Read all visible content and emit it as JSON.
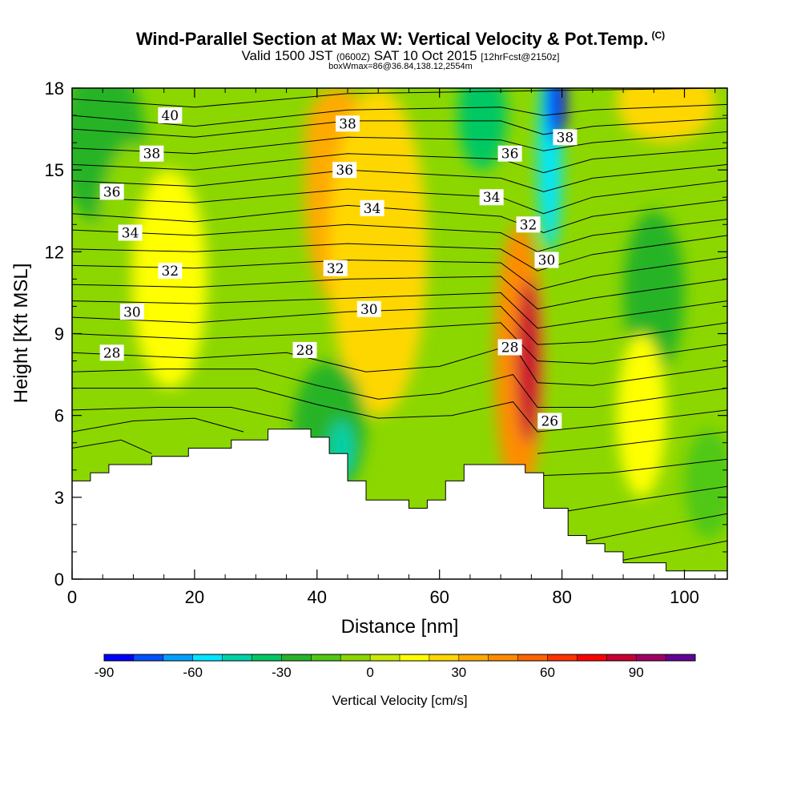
{
  "title": "Wind-Parallel Section at Max W: Vertical Velocity & Pot.Temp.",
  "copyright": "(C)",
  "subtitle": {
    "a": "Valid 1500 JST",
    "b": "(0600Z)",
    "c": "SAT 10 Oct 2015",
    "d": "[12hrFcst@2150z]"
  },
  "subtitle2": "boxWmax=86@36.84,138.12,2554m",
  "chart_data": {
    "type": "heatmap",
    "title": "Wind-Parallel Section at Max W: Vertical Velocity & Pot.Temp.",
    "xlabel": "Distance [nm]",
    "ylabel": "Height [Kft MSL]",
    "xlim": [
      0,
      107
    ],
    "ylim": [
      0,
      18
    ],
    "x_ticks": [
      0,
      20,
      40,
      60,
      80,
      100
    ],
    "y_ticks": [
      0,
      3,
      6,
      9,
      12,
      15,
      18
    ],
    "colorbar": {
      "label": "Vertical Velocity [cm/s]",
      "range": [
        -90,
        110
      ],
      "step": 10,
      "tick_labels": [
        "-90",
        "-60",
        "-30",
        "0",
        "30",
        "60",
        "90"
      ],
      "colors": [
        "#0000ff",
        "#0050ff",
        "#00a0ff",
        "#00e6ff",
        "#00d2aa",
        "#00c864",
        "#28b428",
        "#50c814",
        "#8cd700",
        "#c8eb00",
        "#ffff00",
        "#ffd700",
        "#ffaa00",
        "#ff8c00",
        "#ff6400",
        "#ff3200",
        "#ff0000",
        "#c80032",
        "#a00064",
        "#640096"
      ]
    },
    "max_w": {
      "value": 86,
      "lat": 36.84,
      "lon": 138.12,
      "height_m": 2554
    },
    "terrain": [
      [
        0,
        3.6
      ],
      [
        3,
        3.6
      ],
      [
        3,
        3.9
      ],
      [
        6,
        3.9
      ],
      [
        6,
        4.2
      ],
      [
        13,
        4.2
      ],
      [
        13,
        4.5
      ],
      [
        19,
        4.5
      ],
      [
        19,
        4.8
      ],
      [
        26,
        4.8
      ],
      [
        26,
        5.1
      ],
      [
        32,
        5.1
      ],
      [
        32,
        5.5
      ],
      [
        39,
        5.5
      ],
      [
        39,
        5.2
      ],
      [
        42,
        5.2
      ],
      [
        42,
        4.6
      ],
      [
        45,
        4.6
      ],
      [
        45,
        3.6
      ],
      [
        48,
        3.6
      ],
      [
        48,
        2.9
      ],
      [
        55,
        2.9
      ],
      [
        55,
        2.6
      ],
      [
        58,
        2.6
      ],
      [
        58,
        2.9
      ],
      [
        61,
        2.9
      ],
      [
        61,
        3.6
      ],
      [
        64,
        3.6
      ],
      [
        64,
        4.2
      ],
      [
        74,
        4.2
      ],
      [
        74,
        3.9
      ],
      [
        77,
        3.9
      ],
      [
        77,
        2.6
      ],
      [
        81,
        2.6
      ],
      [
        81,
        1.6
      ],
      [
        84,
        1.6
      ],
      [
        84,
        1.3
      ],
      [
        87,
        1.3
      ],
      [
        87,
        1.0
      ],
      [
        90,
        1.0
      ],
      [
        90,
        0.6
      ],
      [
        97,
        0.6
      ],
      [
        97,
        0.3
      ],
      [
        107,
        0.3
      ]
    ],
    "w_cells": [
      {
        "x": 5,
        "y": 16,
        "rx": 7,
        "ry": 3,
        "w": -25
      },
      {
        "x": 10,
        "y": 12,
        "rx": 6,
        "ry": 4,
        "w": -10
      },
      {
        "x": 16,
        "y": 11,
        "rx": 6,
        "ry": 4,
        "w": 10
      },
      {
        "x": 44,
        "y": 14,
        "rx": 6,
        "ry": 4,
        "w": 35
      },
      {
        "x": 43,
        "y": 16,
        "rx": 5,
        "ry": 2,
        "w": 35
      },
      {
        "x": 50,
        "y": 12,
        "rx": 8,
        "ry": 6,
        "w": 20
      },
      {
        "x": 42,
        "y": 5.5,
        "rx": 6,
        "ry": 2.5,
        "w": -30
      },
      {
        "x": 44,
        "y": 4.8,
        "rx": 2,
        "ry": 1,
        "w": -50
      },
      {
        "x": 67,
        "y": 17,
        "rx": 4,
        "ry": 2,
        "w": -40
      },
      {
        "x": 73,
        "y": 8,
        "rx": 4,
        "ry": 5,
        "w": 40
      },
      {
        "x": 74.5,
        "y": 8,
        "rx": 2,
        "ry": 3,
        "w": 86
      },
      {
        "x": 78,
        "y": 15.5,
        "rx": 2,
        "ry": 3.5,
        "w": -60
      },
      {
        "x": 79,
        "y": 17.5,
        "rx": 1.5,
        "ry": 1.5,
        "w": -90
      },
      {
        "x": 95,
        "y": 10.5,
        "rx": 5,
        "ry": 3,
        "w": -25
      },
      {
        "x": 97,
        "y": 17.5,
        "rx": 8,
        "ry": 1.5,
        "w": 20
      },
      {
        "x": 93,
        "y": 6,
        "rx": 4,
        "ry": 3,
        "w": 10
      },
      {
        "x": 104,
        "y": 3.5,
        "rx": 4,
        "ry": 2,
        "w": -15
      }
    ],
    "theta_labels": [
      {
        "text": "40",
        "x": 16,
        "y": 17.0
      },
      {
        "text": "38",
        "x": 13,
        "y": 15.6
      },
      {
        "text": "36",
        "x": 6.5,
        "y": 14.2
      },
      {
        "text": "34",
        "x": 9.5,
        "y": 12.7
      },
      {
        "text": "32",
        "x": 16,
        "y": 11.3
      },
      {
        "text": "30",
        "x": 9.8,
        "y": 9.8
      },
      {
        "text": "28",
        "x": 6.5,
        "y": 8.3
      },
      {
        "text": "38",
        "x": 45,
        "y": 16.7
      },
      {
        "text": "36",
        "x": 44.5,
        "y": 15.0
      },
      {
        "text": "34",
        "x": 49,
        "y": 13.6
      },
      {
        "text": "32",
        "x": 43,
        "y": 11.4
      },
      {
        "text": "30",
        "x": 48.5,
        "y": 9.9
      },
      {
        "text": "28",
        "x": 38,
        "y": 8.4
      },
      {
        "text": "36",
        "x": 71.5,
        "y": 15.6
      },
      {
        "text": "34",
        "x": 68.5,
        "y": 14.0
      },
      {
        "text": "32",
        "x": 74.5,
        "y": 13.0
      },
      {
        "text": "30",
        "x": 77.5,
        "y": 11.7
      },
      {
        "text": "28",
        "x": 71.5,
        "y": 8.5
      },
      {
        "text": "26",
        "x": 78,
        "y": 5.8
      },
      {
        "text": "38",
        "x": 80.5,
        "y": 16.2
      }
    ],
    "theta_contours": [
      [
        [
          0,
          17.6
        ],
        [
          20,
          17.3
        ],
        [
          45,
          17.8
        ],
        [
          75,
          17.9
        ],
        [
          107,
          18.0
        ]
      ],
      [
        [
          0,
          17.0
        ],
        [
          20,
          16.6
        ],
        [
          45,
          17.2
        ],
        [
          70,
          17.3
        ],
        [
          77,
          17.0
        ],
        [
          85,
          17.2
        ],
        [
          107,
          17.4
        ]
      ],
      [
        [
          0,
          16.5
        ],
        [
          20,
          16.2
        ],
        [
          45,
          16.8
        ],
        [
          70,
          16.8
        ],
        [
          77,
          16.3
        ],
        [
          85,
          16.6
        ],
        [
          107,
          16.9
        ]
      ],
      [
        [
          0,
          15.8
        ],
        [
          20,
          15.6
        ],
        [
          45,
          16.2
        ],
        [
          70,
          16.1
        ],
        [
          77,
          15.7
        ],
        [
          85,
          16.0
        ],
        [
          107,
          16.4
        ]
      ],
      [
        [
          0,
          15.2
        ],
        [
          20,
          15.0
        ],
        [
          45,
          15.6
        ],
        [
          70,
          15.4
        ],
        [
          77,
          14.9
        ],
        [
          85,
          15.4
        ],
        [
          107,
          15.8
        ]
      ],
      [
        [
          0,
          14.6
        ],
        [
          20,
          14.4
        ],
        [
          45,
          15.0
        ],
        [
          70,
          14.7
        ],
        [
          77,
          14.2
        ],
        [
          85,
          14.7
        ],
        [
          107,
          15.2
        ]
      ],
      [
        [
          0,
          14.0
        ],
        [
          20,
          13.8
        ],
        [
          45,
          14.3
        ],
        [
          70,
          14.0
        ],
        [
          77,
          13.4
        ],
        [
          85,
          14.0
        ],
        [
          107,
          14.6
        ]
      ],
      [
        [
          0,
          13.4
        ],
        [
          20,
          13.1
        ],
        [
          45,
          13.7
        ],
        [
          70,
          13.3
        ],
        [
          77,
          12.7
        ],
        [
          85,
          13.3
        ],
        [
          107,
          13.9
        ]
      ],
      [
        [
          0,
          12.8
        ],
        [
          20,
          12.6
        ],
        [
          45,
          13.0
        ],
        [
          70,
          12.7
        ],
        [
          76,
          12.0
        ],
        [
          85,
          12.6
        ],
        [
          107,
          13.2
        ]
      ],
      [
        [
          0,
          12.1
        ],
        [
          20,
          12.0
        ],
        [
          45,
          12.3
        ],
        [
          70,
          12.1
        ],
        [
          76,
          11.3
        ],
        [
          85,
          11.9
        ],
        [
          107,
          12.6
        ]
      ],
      [
        [
          0,
          11.5
        ],
        [
          20,
          11.4
        ],
        [
          45,
          11.7
        ],
        [
          70,
          11.6
        ],
        [
          76,
          10.6
        ],
        [
          85,
          11.1
        ],
        [
          107,
          11.8
        ]
      ],
      [
        [
          0,
          10.8
        ],
        [
          20,
          10.7
        ],
        [
          45,
          11.0
        ],
        [
          70,
          11.1
        ],
        [
          76,
          9.9
        ],
        [
          85,
          10.3
        ],
        [
          107,
          11.0
        ]
      ],
      [
        [
          0,
          10.2
        ],
        [
          20,
          10.1
        ],
        [
          45,
          10.3
        ],
        [
          70,
          10.5
        ],
        [
          76,
          9.2
        ],
        [
          85,
          9.5
        ],
        [
          107,
          10.2
        ]
      ],
      [
        [
          0,
          9.6
        ],
        [
          20,
          9.4
        ],
        [
          45,
          9.8
        ],
        [
          70,
          10.0
        ],
        [
          76,
          8.6
        ],
        [
          85,
          8.7
        ],
        [
          107,
          9.4
        ]
      ],
      [
        [
          0,
          9.0
        ],
        [
          20,
          8.8
        ],
        [
          40,
          9.0
        ],
        [
          55,
          9.2
        ],
        [
          70,
          9.4
        ],
        [
          76,
          8.0
        ],
        [
          85,
          7.9
        ],
        [
          107,
          8.6
        ]
      ],
      [
        [
          0,
          8.3
        ],
        [
          20,
          8.1
        ],
        [
          35,
          8.3
        ],
        [
          48,
          7.6
        ],
        [
          60,
          7.8
        ],
        [
          72,
          8.6
        ],
        [
          76,
          7.2
        ],
        [
          85,
          7.1
        ],
        [
          107,
          7.8
        ]
      ],
      [
        [
          0,
          7.6
        ],
        [
          15,
          7.7
        ],
        [
          30,
          7.7
        ],
        [
          40,
          7.1
        ],
        [
          50,
          6.6
        ],
        [
          60,
          6.8
        ],
        [
          72,
          7.5
        ],
        [
          76,
          6.3
        ],
        [
          85,
          6.3
        ],
        [
          107,
          7.0
        ]
      ],
      [
        [
          0,
          7.0
        ],
        [
          15,
          7.0
        ],
        [
          30,
          7.0
        ],
        [
          40,
          6.4
        ],
        [
          50,
          5.9
        ],
        [
          62,
          6.0
        ],
        [
          72,
          6.5
        ],
        [
          76,
          5.4
        ],
        [
          85,
          5.6
        ],
        [
          107,
          6.2
        ]
      ],
      [
        [
          0,
          6.2
        ],
        [
          14,
          6.3
        ],
        [
          26,
          6.3
        ],
        [
          36,
          5.8
        ]
      ],
      [
        [
          0,
          5.4
        ],
        [
          10,
          5.8
        ],
        [
          20,
          5.9
        ],
        [
          28,
          5.4
        ]
      ],
      [
        [
          0,
          4.8
        ],
        [
          8,
          5.1
        ],
        [
          13,
          4.6
        ]
      ],
      [
        [
          76,
          4.6
        ],
        [
          85,
          4.8
        ],
        [
          107,
          5.4
        ]
      ],
      [
        [
          77,
          3.8
        ],
        [
          88,
          3.9
        ],
        [
          107,
          4.4
        ]
      ],
      [
        [
          81,
          2.5
        ],
        [
          92,
          2.9
        ],
        [
          107,
          3.4
        ]
      ],
      [
        [
          84,
          1.4
        ],
        [
          95,
          1.9
        ],
        [
          107,
          2.4
        ]
      ],
      [
        [
          90,
          0.7
        ],
        [
          100,
          1.1
        ],
        [
          107,
          1.4
        ]
      ]
    ]
  }
}
